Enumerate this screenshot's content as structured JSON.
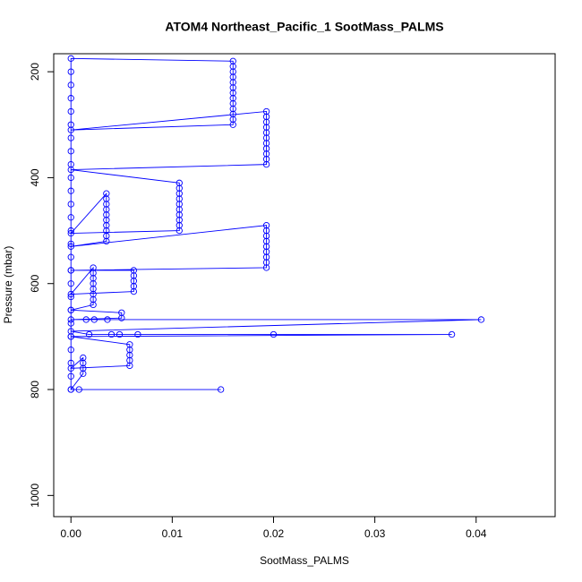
{
  "chart_data": {
    "type": "scatter",
    "title": "ATOM4 Northeast_Pacific_1 SootMass_PALMS",
    "x_label": "SootMass_PALMS",
    "y_label": "Pressure (mbar)",
    "xlim": [
      -0.0017,
      0.0478
    ],
    "ylim": [
      1040,
      166
    ],
    "xticks": [
      {
        "value": 0,
        "label": "0.00"
      },
      0.01,
      0.02,
      0.03,
      0.04
    ],
    "yticks": [
      200,
      400,
      600,
      800,
      1000
    ],
    "connect_points": true,
    "series": [
      {
        "color": "#0000ff",
        "x": [
          0,
          0,
          0,
          0,
          0,
          0,
          0,
          0,
          0,
          0,
          0,
          0,
          0,
          0,
          0,
          0,
          0,
          0,
          0,
          0,
          0,
          0,
          0,
          0,
          0,
          0,
          0.016,
          0.016,
          0.016,
          0.016,
          0.016,
          0.016,
          0.016,
          0.016,
          0.016,
          0.016,
          0.016,
          0.016,
          0.016,
          0,
          0.0193,
          0.0193,
          0.0193,
          0.0193,
          0.0193,
          0.0193,
          0.0193,
          0.0193,
          0.0193,
          0.0193,
          0.0193,
          0,
          0.0107,
          0.0107,
          0.0107,
          0.0107,
          0.0107,
          0.0107,
          0.0107,
          0.0107,
          0.0107,
          0.0107,
          0,
          0.0035,
          0.0035,
          0.0035,
          0.0035,
          0.0035,
          0.0035,
          0.0035,
          0.0035,
          0.0035,
          0.0035,
          0,
          0.0193,
          0.0193,
          0.0193,
          0.0193,
          0.0193,
          0.0193,
          0.0193,
          0.0193,
          0.0193,
          0,
          0.0062,
          0.0062,
          0.0062,
          0.0062,
          0.0062,
          0,
          0.0022,
          0.0022,
          0.0022,
          0.0022,
          0.0022,
          0.0022,
          0.0022,
          0.0022,
          0,
          0.005,
          0.005,
          0,
          0.0015,
          0.0023,
          0.0036,
          0.0405,
          0,
          0.0018,
          0.004,
          0.0048,
          0.0066,
          0.02,
          0.0376,
          0,
          0.0058,
          0.0058,
          0.0058,
          0.0058,
          0.0058,
          0,
          0.0012,
          0.0012,
          0.0012,
          0.0012,
          0,
          0.0008,
          0.0148
        ],
        "values": [
          800,
          775,
          750,
          725,
          700,
          675,
          650,
          625,
          600,
          575,
          550,
          525,
          500,
          475,
          450,
          425,
          400,
          375,
          350,
          325,
          300,
          275,
          250,
          225,
          200,
          175,
          180,
          190,
          200,
          210,
          220,
          230,
          240,
          250,
          260,
          270,
          280,
          290,
          300,
          310,
          275,
          285,
          295,
          305,
          315,
          325,
          335,
          345,
          355,
          365,
          375,
          385,
          410,
          420,
          430,
          440,
          450,
          460,
          470,
          480,
          490,
          500,
          505,
          430,
          440,
          450,
          460,
          470,
          480,
          490,
          500,
          510,
          520,
          530,
          490,
          500,
          510,
          520,
          530,
          540,
          550,
          560,
          570,
          575,
          575,
          585,
          595,
          605,
          615,
          620,
          570,
          580,
          590,
          600,
          610,
          620,
          630,
          640,
          650,
          655,
          665,
          668,
          668,
          668,
          668,
          668,
          690,
          696,
          696,
          696,
          696,
          696,
          696,
          700,
          715,
          725,
          735,
          745,
          755,
          760,
          740,
          750,
          760,
          770,
          800,
          800,
          800
        ]
      }
    ]
  }
}
